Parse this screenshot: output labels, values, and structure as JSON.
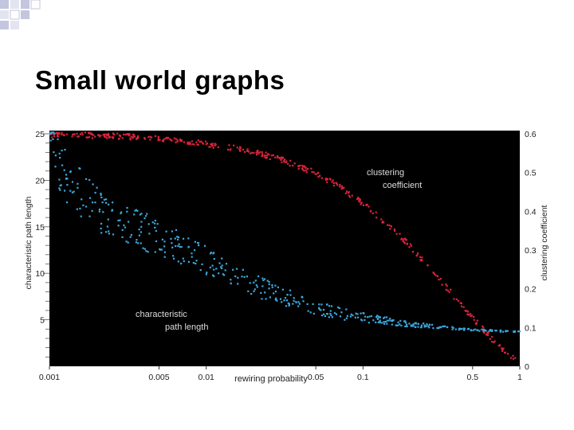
{
  "slide": {
    "title": "Small world graphs"
  },
  "colors": {
    "plot_background": "#000000",
    "clustering_series": "#d8243a",
    "path_length_series": "#3aa7dc",
    "decor_square": "#c3c6de"
  },
  "chart_data": {
    "type": "scatter",
    "x_scale": "log",
    "xlim": [
      0.001,
      1
    ],
    "x_ticks": [
      {
        "value": 0.001,
        "label": "0.001"
      },
      {
        "value": 0.005,
        "label": "0.005"
      },
      {
        "value": 0.01,
        "label": "0.01"
      },
      {
        "value": 0.05,
        "label": "0.05"
      },
      {
        "value": 0.1,
        "label": "0.1"
      },
      {
        "value": 0.5,
        "label": "0.5"
      },
      {
        "value": 1,
        "label": "1"
      }
    ],
    "xlabel": "rewiring probability",
    "ylabel_left": "characteristic path length",
    "ylabel_right": "clustering coefficient",
    "ylim_left": [
      0,
      25
    ],
    "ylim_right": [
      0,
      0.6
    ],
    "y_ticks_left": [
      {
        "value": 5,
        "label": "5"
      },
      {
        "value": 10,
        "label": "10"
      },
      {
        "value": 15,
        "label": "15"
      },
      {
        "value": 20,
        "label": "20"
      },
      {
        "value": 25,
        "label": "25"
      }
    ],
    "y_ticks_right": [
      {
        "value": 0,
        "label": "0"
      },
      {
        "value": 0.1,
        "label": "0.1"
      },
      {
        "value": 0.2,
        "label": "0.2"
      },
      {
        "value": 0.3,
        "label": "0.3"
      },
      {
        "value": 0.4,
        "label": "0.4"
      },
      {
        "value": 0.5,
        "label": "0.5"
      },
      {
        "value": 0.6,
        "label": "0.6"
      }
    ],
    "grid": false,
    "series": [
      {
        "key": "clustering",
        "axis": "right",
        "annotation": [
          "clustering",
          "coefficient"
        ],
        "points": [
          [
            0.001,
            0.6
          ],
          [
            0.0015,
            0.599
          ],
          [
            0.002,
            0.598
          ],
          [
            0.003,
            0.595
          ],
          [
            0.005,
            0.59
          ],
          [
            0.007,
            0.585
          ],
          [
            0.01,
            0.575
          ],
          [
            0.015,
            0.565
          ],
          [
            0.02,
            0.555
          ],
          [
            0.03,
            0.535
          ],
          [
            0.05,
            0.5
          ],
          [
            0.07,
            0.465
          ],
          [
            0.1,
            0.42
          ],
          [
            0.15,
            0.36
          ],
          [
            0.2,
            0.31
          ],
          [
            0.3,
            0.23
          ],
          [
            0.4,
            0.17
          ],
          [
            0.5,
            0.125
          ],
          [
            0.6,
            0.09
          ],
          [
            0.7,
            0.06
          ],
          [
            0.8,
            0.04
          ],
          [
            0.9,
            0.025
          ],
          [
            1,
            0.018
          ]
        ]
      },
      {
        "key": "path_length",
        "axis": "left",
        "annotation": [
          "characteristic",
          "path length"
        ],
        "points": [
          [
            0.001,
            25
          ],
          [
            0.0012,
            21
          ],
          [
            0.0015,
            19
          ],
          [
            0.002,
            17
          ],
          [
            0.003,
            15.5
          ],
          [
            0.005,
            13.8
          ],
          [
            0.007,
            12.6
          ],
          [
            0.01,
            11.5
          ],
          [
            0.015,
            10
          ],
          [
            0.02,
            8.8
          ],
          [
            0.03,
            7.6
          ],
          [
            0.05,
            6.4
          ],
          [
            0.07,
            5.8
          ],
          [
            0.1,
            5.3
          ],
          [
            0.15,
            4.9
          ],
          [
            0.2,
            4.6
          ],
          [
            0.3,
            4.3
          ],
          [
            0.5,
            4
          ],
          [
            1,
            3.8
          ]
        ]
      }
    ]
  }
}
